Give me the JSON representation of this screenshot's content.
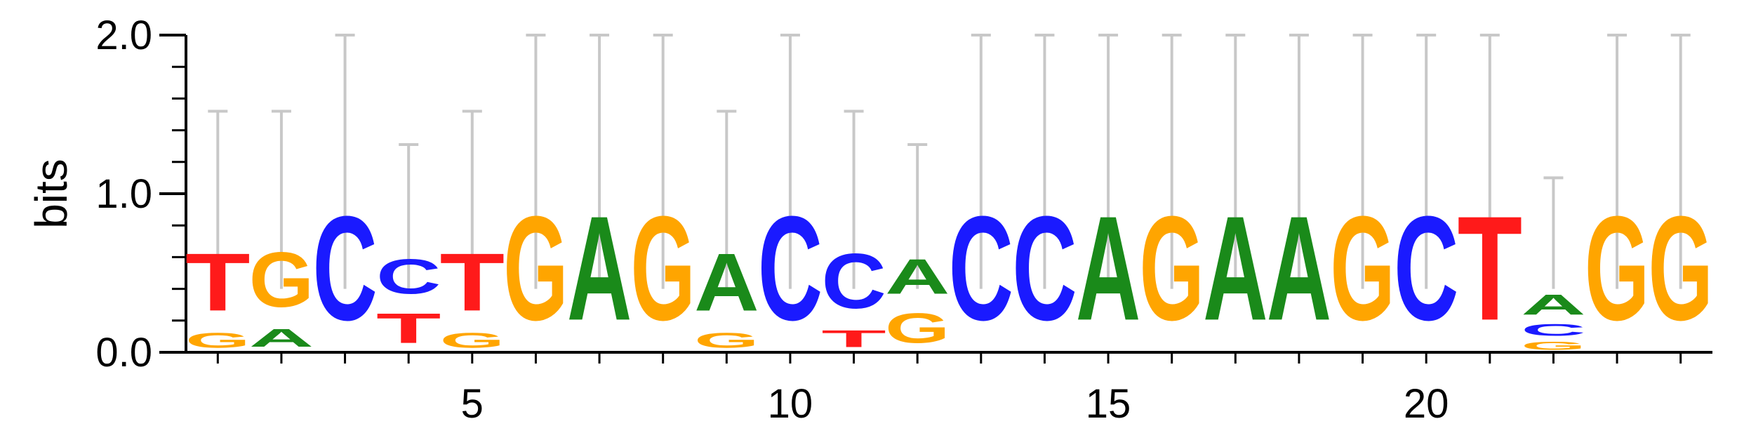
{
  "chart_data": {
    "type": "sequence-logo",
    "ylabel": "bits",
    "ylim": [
      0,
      2
    ],
    "yticks": [
      "0.0",
      "1.0",
      "2.0"
    ],
    "xticks": [
      "5",
      "10",
      "15",
      "20"
    ],
    "xtick_positions": [
      5,
      10,
      15,
      20
    ],
    "colors": {
      "A": "#1a8a1a",
      "C": "#1a1aff",
      "G": "#ffa500",
      "T": "#ff1a1a",
      "errorbar": "#c8c8c8"
    },
    "positions": [
      {
        "pos": 1,
        "letters": [
          {
            "l": "G",
            "h": 0.15
          },
          {
            "l": "T",
            "h": 0.58
          }
        ],
        "err": 1.52
      },
      {
        "pos": 2,
        "letters": [
          {
            "l": "A",
            "h": 0.18
          },
          {
            "l": "G",
            "h": 0.55
          }
        ],
        "err": 1.52
      },
      {
        "pos": 3,
        "letters": [
          {
            "l": "C",
            "h": 1.05
          }
        ],
        "err": 2.0
      },
      {
        "pos": 4,
        "letters": [
          {
            "l": "T",
            "h": 0.3
          },
          {
            "l": "C",
            "h": 0.35
          }
        ],
        "err": 1.31
      },
      {
        "pos": 5,
        "letters": [
          {
            "l": "G",
            "h": 0.15
          },
          {
            "l": "T",
            "h": 0.58
          }
        ],
        "err": 1.52
      },
      {
        "pos": 6,
        "letters": [
          {
            "l": "G",
            "h": 1.05
          }
        ],
        "err": 2.0
      },
      {
        "pos": 7,
        "letters": [
          {
            "l": "A",
            "h": 1.05
          }
        ],
        "err": 2.0
      },
      {
        "pos": 8,
        "letters": [
          {
            "l": "G",
            "h": 1.05
          }
        ],
        "err": 2.0
      },
      {
        "pos": 9,
        "letters": [
          {
            "l": "G",
            "h": 0.15
          },
          {
            "l": "A",
            "h": 0.58
          }
        ],
        "err": 1.52
      },
      {
        "pos": 10,
        "letters": [
          {
            "l": "C",
            "h": 1.05
          }
        ],
        "err": 2.0
      },
      {
        "pos": 11,
        "letters": [
          {
            "l": "T",
            "h": 0.17
          },
          {
            "l": "C",
            "h": 0.55
          }
        ],
        "err": 1.52
      },
      {
        "pos": 12,
        "letters": [
          {
            "l": "G",
            "h": 0.3
          },
          {
            "l": "A",
            "h": 0.35
          }
        ],
        "err": 1.31
      },
      {
        "pos": 13,
        "letters": [
          {
            "l": "C",
            "h": 1.05
          }
        ],
        "err": 2.0
      },
      {
        "pos": 14,
        "letters": [
          {
            "l": "C",
            "h": 1.05
          }
        ],
        "err": 2.0
      },
      {
        "pos": 15,
        "letters": [
          {
            "l": "A",
            "h": 1.05
          }
        ],
        "err": 2.0
      },
      {
        "pos": 16,
        "letters": [
          {
            "l": "G",
            "h": 1.05
          }
        ],
        "err": 2.0
      },
      {
        "pos": 17,
        "letters": [
          {
            "l": "A",
            "h": 1.05
          }
        ],
        "err": 2.0
      },
      {
        "pos": 18,
        "letters": [
          {
            "l": "A",
            "h": 1.05
          }
        ],
        "err": 2.0
      },
      {
        "pos": 19,
        "letters": [
          {
            "l": "G",
            "h": 1.05
          }
        ],
        "err": 2.0
      },
      {
        "pos": 20,
        "letters": [
          {
            "l": "C",
            "h": 1.05
          }
        ],
        "err": 2.0
      },
      {
        "pos": 21,
        "letters": [
          {
            "l": "T",
            "h": 1.05
          }
        ],
        "err": 2.0
      },
      {
        "pos": 22,
        "letters": [
          {
            "l": "G",
            "h": 0.08
          },
          {
            "l": "C",
            "h": 0.12
          },
          {
            "l": "A",
            "h": 0.2
          }
        ],
        "err": 1.1
      },
      {
        "pos": 23,
        "letters": [
          {
            "l": "G",
            "h": 1.05
          }
        ],
        "err": 2.0
      },
      {
        "pos": 24,
        "letters": [
          {
            "l": "G",
            "h": 1.05
          }
        ],
        "err": 2.0
      }
    ]
  }
}
